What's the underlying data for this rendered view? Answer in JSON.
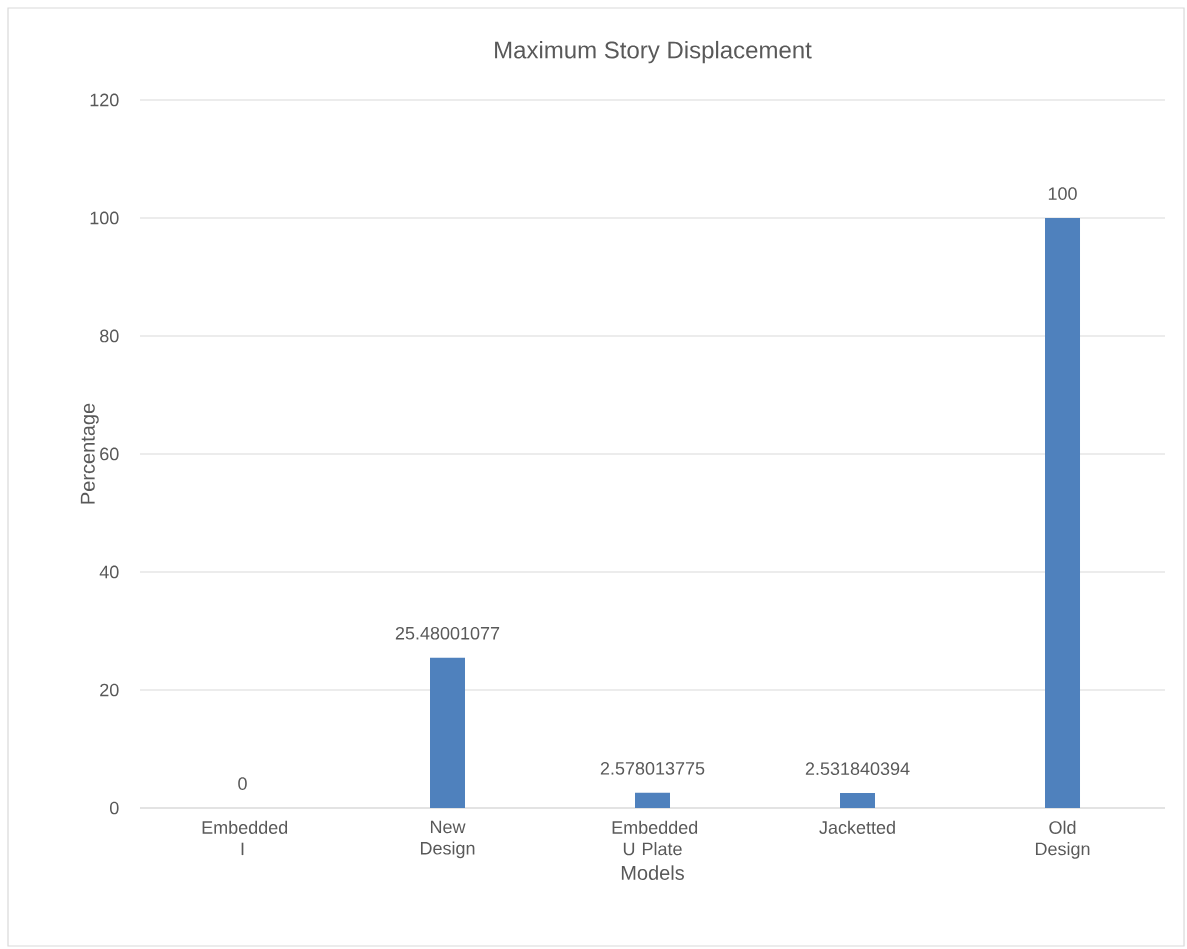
{
  "chart_data": {
    "type": "bar",
    "title": "Maximum Story Displacement",
    "xlabel": "Models",
    "ylabel": "Percentage",
    "categories": [
      "Embedded I",
      "New Design",
      "Embedded U Plate",
      "Jacketted",
      "Old Design"
    ],
    "values": [
      0,
      25.48001077,
      2.578013775,
      2.531840394,
      100
    ],
    "color": "#4f81bd",
    "data_labels": true,
    "ylim": [
      0,
      120
    ],
    "yticks": [
      0,
      20,
      40,
      60,
      80,
      100,
      120
    ],
    "grid": "y"
  }
}
